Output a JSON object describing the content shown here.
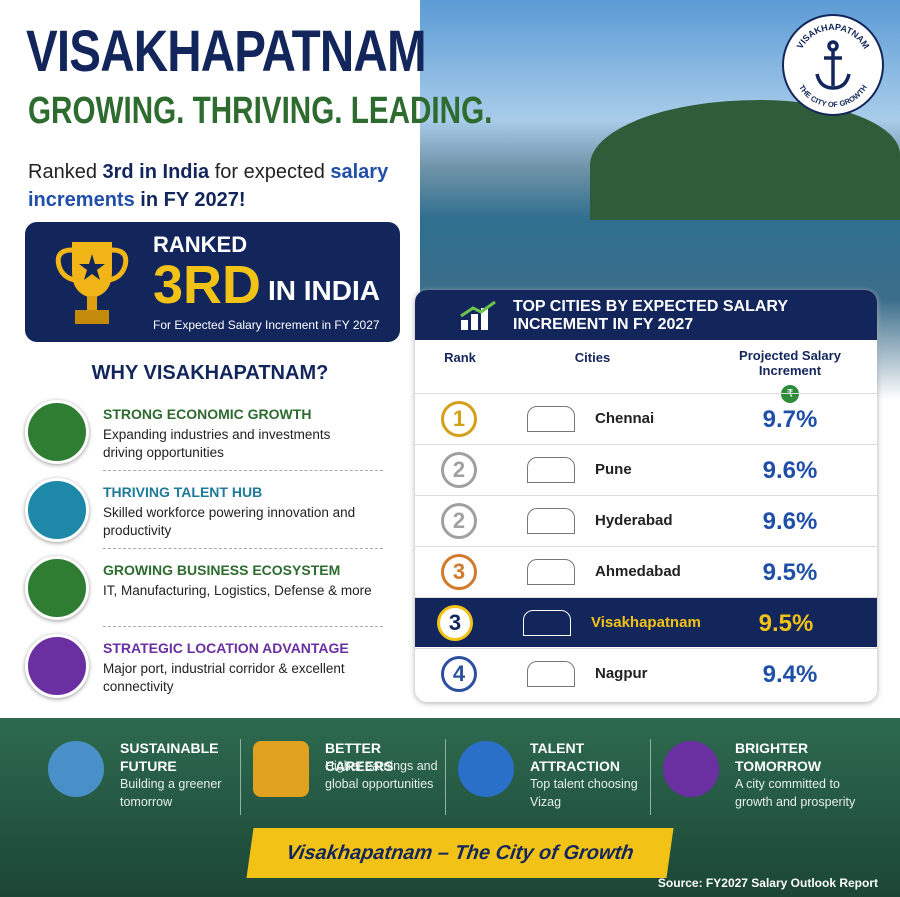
{
  "header": {
    "title": "VISAKHAPATNAM",
    "tagline": "GROWING. THRIVING. LEADING.",
    "intro": [
      "Ranked ",
      "3rd in India",
      " for expected ",
      "salary increments",
      " in FY 2027!"
    ]
  },
  "emblem": {
    "top": "VISAKHAPATNAM",
    "bottom": "THE CITY OF GROWTH"
  },
  "badge": {
    "ranked": "RANKED",
    "rank": "3RD",
    "place": "IN INDIA",
    "note": "For Expected Salary Increment in FY 2027"
  },
  "why": {
    "title": "WHY VISAKHAPATNAM?",
    "items": [
      {
        "title": "STRONG ECONOMIC GROWTH",
        "desc": "Expanding industries and investments driving opportunities"
      },
      {
        "title": "THRIVING TALENT HUB",
        "desc": "Skilled workforce powering innovation and productivity"
      },
      {
        "title": "GROWING BUSINESS ECOSYSTEM",
        "desc": "IT, Manufacturing, Logistics, Defense & more"
      },
      {
        "title": "STRATEGIC LOCATION ADVANTAGE",
        "desc": "Major port, industrial corridor & excellent connectivity"
      }
    ]
  },
  "table": {
    "title": "TOP CITIES BY EXPECTED SALARY INCREMENT IN FY 2027",
    "columns": [
      "Rank",
      "Cities",
      "Projected Salary Increment"
    ],
    "currency": "₹",
    "rows": [
      [
        "1",
        "Chennai",
        "9.7%"
      ],
      [
        "2",
        "Pune",
        "9.6%"
      ],
      [
        "2",
        "Hyderabad",
        "9.6%"
      ],
      [
        "3",
        "Ahmedabad",
        "9.5%"
      ],
      [
        "3",
        "Visakhapatnam",
        "9.5%"
      ],
      [
        "4",
        "Nagpur",
        "9.4%"
      ]
    ]
  },
  "benefits": [
    {
      "title": "SUSTAINABLE FUTURE",
      "desc": "Building a greener tomorrow"
    },
    {
      "title": "BETTER CAREERS",
      "desc": "Higher earnings and global opportunities"
    },
    {
      "title": "TALENT ATTRACTION",
      "desc": "Top talent choosing Vizag"
    },
    {
      "title": "BRIGHTER TOMORROW",
      "desc": "A city committed to growth and prosperity"
    }
  ],
  "footer": {
    "slogan": "Visakhapatnam – The City of Growth",
    "source": "Source: FY2027 Salary Outlook Report"
  }
}
